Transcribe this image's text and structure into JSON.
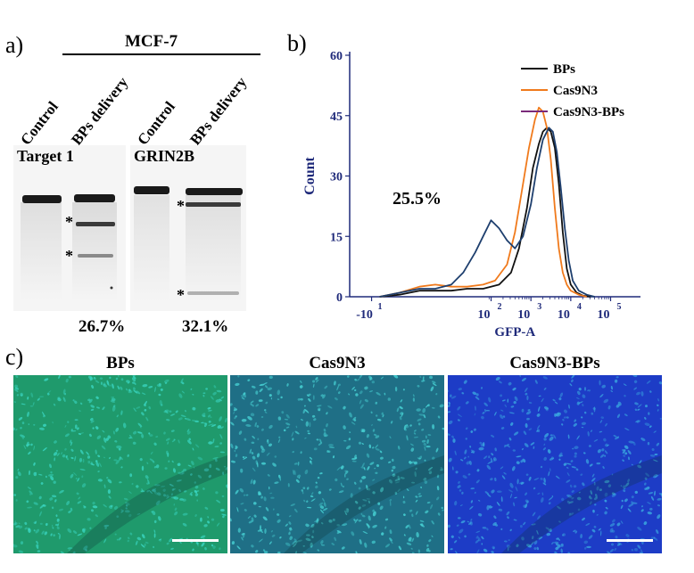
{
  "panel_a": {
    "letter": "a)",
    "cell_line": "MCF-7",
    "lanes": [
      "Control",
      "BPs delivery",
      "Control",
      "BPs delivery"
    ],
    "gels": [
      {
        "title": "Target 1",
        "percent": "26.7%",
        "star_marks": [
          "*",
          "*"
        ]
      },
      {
        "title": "GRIN2B",
        "percent": "32.1%",
        "star_marks": [
          "*",
          "*"
        ]
      }
    ]
  },
  "panel_b": {
    "letter": "b)",
    "annotation": "25.5%",
    "chart_data": {
      "type": "line",
      "title": "",
      "xlabel": "GFP-A",
      "ylabel": "Count",
      "ylim": [
        0,
        60
      ],
      "yticks": [
        "0",
        "15",
        "30",
        "45",
        "60"
      ],
      "xticks": [
        {
          "base": "-10",
          "exp": "1",
          "value": -1
        },
        {
          "base": "10",
          "exp": "2",
          "value": 2
        },
        {
          "base": "10",
          "exp": "3",
          "value": 3
        },
        {
          "base": "10",
          "exp": "4",
          "value": 4
        },
        {
          "base": "10",
          "exp": "5",
          "value": 5
        }
      ],
      "xlim": [
        -1.55,
        5.75
      ],
      "legend": {
        "position": "top-right"
      },
      "series": [
        {
          "name": "BPs",
          "color": "#111111",
          "x": [
            -0.8,
            -0.3,
            0.2,
            0.6,
            1.0,
            1.4,
            1.8,
            2.2,
            2.5,
            2.7,
            2.9,
            3.05,
            3.2,
            3.3,
            3.4,
            3.5,
            3.6,
            3.7,
            3.8,
            3.9,
            4.0,
            4.15,
            4.3,
            4.5
          ],
          "y": [
            0,
            0.5,
            1.5,
            1.5,
            1.5,
            2,
            2,
            3,
            6,
            12,
            22,
            32,
            38,
            41,
            42,
            41,
            37,
            28,
            16,
            7,
            3,
            1,
            0.3,
            0
          ]
        },
        {
          "name": "Cas9N3",
          "color": "#f07a1c",
          "x": [
            -0.8,
            -0.3,
            0.2,
            0.6,
            1.0,
            1.4,
            1.8,
            2.1,
            2.4,
            2.6,
            2.8,
            2.95,
            3.1,
            3.2,
            3.3,
            3.4,
            3.5,
            3.6,
            3.7,
            3.8,
            3.9,
            4.0,
            4.2,
            4.4
          ],
          "y": [
            0,
            1,
            2.5,
            3,
            2.5,
            2.5,
            3,
            4,
            8,
            16,
            28,
            37,
            44,
            47,
            46,
            42,
            34,
            22,
            12,
            6,
            3,
            1.5,
            0.5,
            0
          ]
        },
        {
          "name": "Cas9N3-BPs",
          "color": "#1e3f6e",
          "x": [
            -0.8,
            -0.3,
            0.2,
            0.6,
            1.0,
            1.3,
            1.6,
            1.85,
            2.0,
            2.2,
            2.4,
            2.6,
            2.8,
            3.0,
            3.15,
            3.3,
            3.45,
            3.55,
            3.65,
            3.75,
            3.85,
            3.95,
            4.05,
            4.2,
            4.4,
            4.6
          ],
          "y": [
            0,
            1,
            2,
            2,
            3,
            6,
            11,
            16,
            19,
            17,
            14,
            12,
            15,
            23,
            32,
            39,
            42,
            41,
            36,
            27,
            17,
            9,
            4,
            1.5,
            0.5,
            0
          ]
        }
      ]
    }
  },
  "panel_c": {
    "letter": "c)",
    "images": [
      {
        "title": "BPs",
        "tone": "#1f9a6c",
        "accent": "#3ad6c2"
      },
      {
        "title": "Cas9N3",
        "tone": "#1f6f86",
        "accent": "#48d4d6"
      },
      {
        "title": "Cas9N3-BPs",
        "tone": "#1d3cc6",
        "accent": "#3aa8e0"
      }
    ]
  }
}
